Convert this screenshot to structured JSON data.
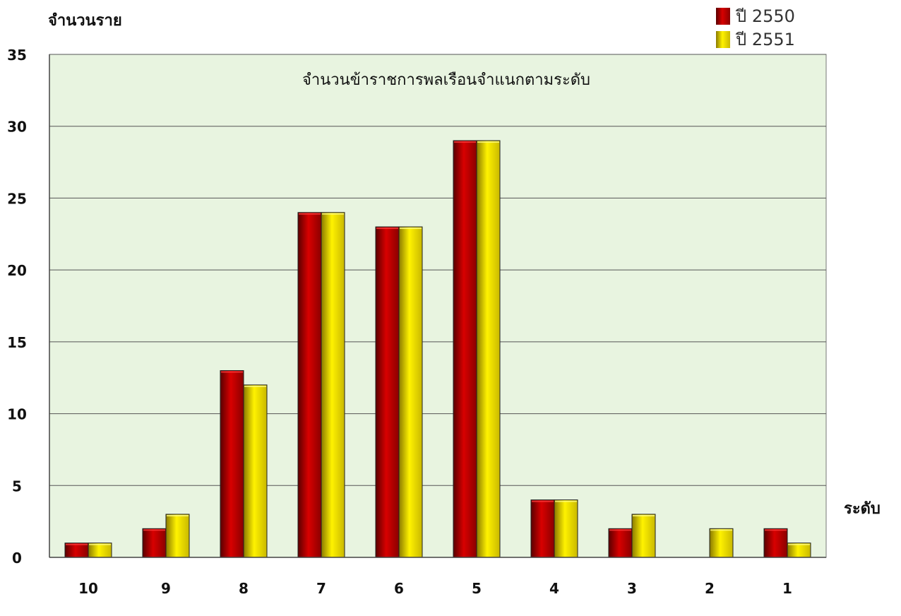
{
  "chart_data": {
    "type": "bar",
    "title": "จำนวนข้าราชการพลเรือนจำแนกตามระดับ",
    "ylabel": "จำนวนราย",
    "xlabel": "ระดับ",
    "ylim": [
      0,
      35
    ],
    "yticks": [
      0,
      5,
      10,
      15,
      20,
      25,
      30,
      35
    ],
    "categories": [
      "10",
      "9",
      "8",
      "7",
      "6",
      "5",
      "4",
      "3",
      "2",
      "1"
    ],
    "series": [
      {
        "name": "ปี 2550",
        "color": "#cc0000",
        "values": [
          1,
          2,
          13,
          24,
          23,
          29,
          4,
          2,
          0,
          2
        ]
      },
      {
        "name": "ปี 2551",
        "color": "#f2e600",
        "values": [
          1,
          3,
          12,
          24,
          23,
          29,
          4,
          3,
          2,
          1
        ]
      }
    ],
    "grid": true,
    "legend": "top-right",
    "plot_background": "#e8f4e0"
  }
}
